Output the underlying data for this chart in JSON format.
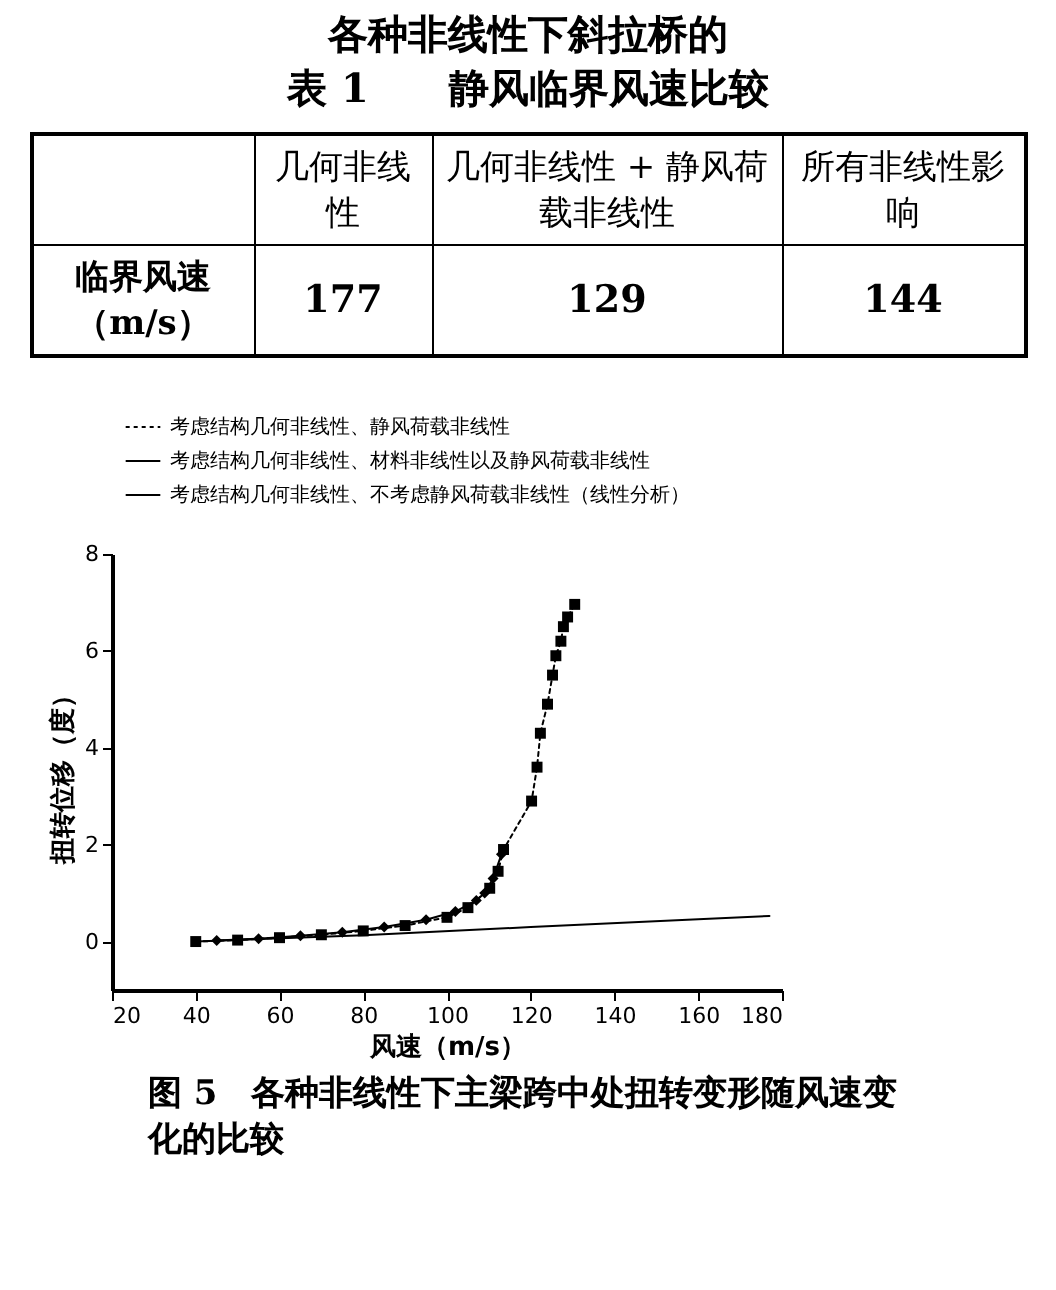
{
  "chart_data": [
    {
      "type": "other",
      "title": "各种非线性下斜拉桥的",
      "subtitle": "表 1　　静风临界风速比较",
      "ylabel": "临界风速（m/s）",
      "categories": [
        "几何非线性",
        "几何非线性 + 静风荷载非线性",
        "所有非线性影响"
      ],
      "values": [
        177,
        129,
        144
      ],
      "data_labels": true
    },
    {
      "type": "line",
      "title": "图 5　各种非线性下主梁跨中处扭转变形随风速变化的比较",
      "xlabel": "风速（m/s）",
      "ylabel": "扭转位移（度）",
      "xlim": [
        20,
        180
      ],
      "xticks": [
        20,
        40,
        60,
        80,
        100,
        120,
        140,
        160,
        180
      ],
      "ylim": [
        -1,
        8
      ],
      "yticks": [
        0,
        2,
        4,
        6,
        8
      ],
      "grid": false,
      "legend": "top",
      "series": [
        {
          "name": "考虑结构几何非线性、静风荷载非线性",
          "color": "#000000",
          "marker": "square",
          "line_style": "dotted",
          "x": [
            40,
            50,
            60,
            70,
            80,
            90,
            100,
            105,
            110.2,
            112.2,
            113.5,
            120.2,
            121.5,
            122.3,
            124,
            125.2,
            126,
            127.2,
            127.8,
            128.8,
            130.5
          ],
          "values": [
            0,
            0.03,
            0.08,
            0.14,
            0.22,
            0.33,
            0.5,
            0.7,
            1.1,
            1.45,
            1.9,
            2.9,
            3.6,
            4.3,
            4.9,
            5.5,
            5.9,
            6.2,
            6.5,
            6.7,
            6.96
          ]
        },
        {
          "name": "考虑结构几何非线性、材料非线性以及静风荷载非线性",
          "color": "#000000",
          "marker": "diamond",
          "line_style": "solid",
          "x": [
            45,
            55,
            65,
            75,
            85,
            95,
            102,
            107,
            109,
            111,
            113
          ],
          "values": [
            0.02,
            0.06,
            0.12,
            0.19,
            0.3,
            0.45,
            0.62,
            0.85,
            1.0,
            1.3,
            1.8
          ]
        },
        {
          "name": "考虑结构几何非线性、不考虑静风荷载非线性（线性分析）",
          "color": "#000000",
          "marker": "none",
          "line_style": "solid",
          "x": [
            40,
            80,
            120,
            160,
            177
          ],
          "values": [
            0,
            0.13,
            0.3,
            0.46,
            0.53
          ]
        }
      ]
    }
  ]
}
